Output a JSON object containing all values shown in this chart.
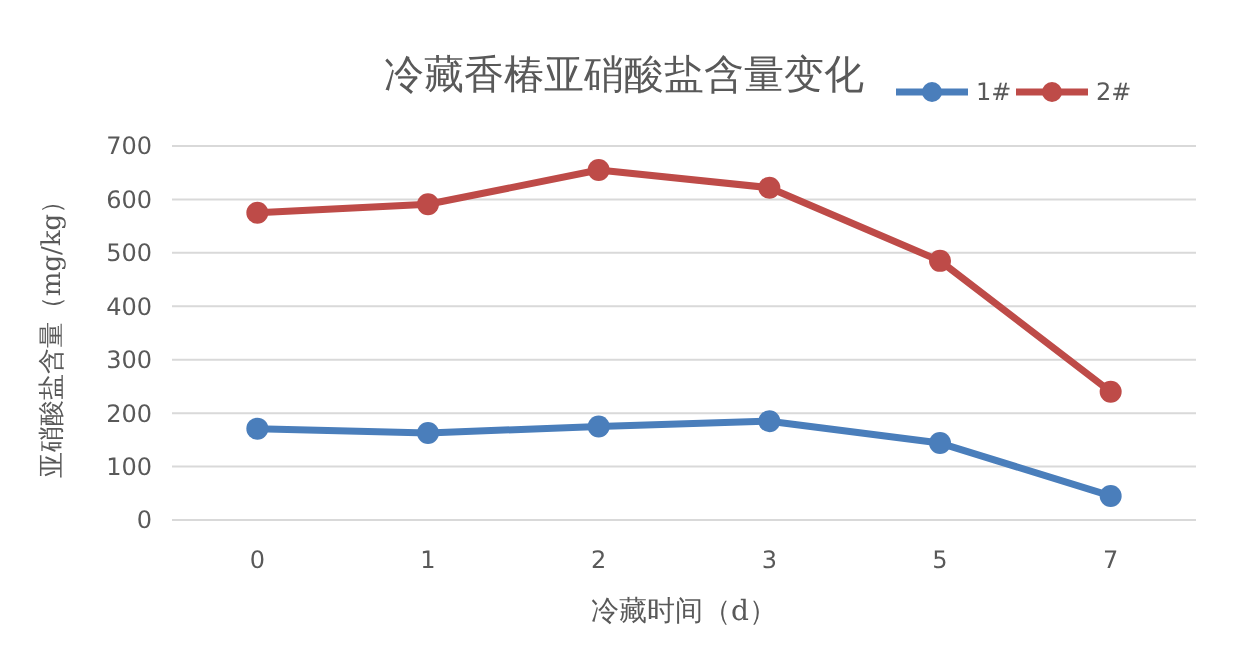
{
  "chart_data": {
    "type": "line",
    "title": "冷藏香椿亚硝酸盐含量变化",
    "xlabel": "冷藏时间（d）",
    "ylabel": "亚硝酸盐含量（mg/kg）",
    "categories": [
      "0",
      "1",
      "2",
      "3",
      "5",
      "7"
    ],
    "series": [
      {
        "name": "1#",
        "color": "#4a7ebb",
        "values": [
          171,
          163,
          175,
          185,
          144,
          45
        ]
      },
      {
        "name": "2#",
        "color": "#be4b48",
        "values": [
          575,
          591,
          655,
          622,
          485,
          240
        ]
      }
    ],
    "ylim": [
      0,
      700
    ],
    "yticks": [
      0,
      100,
      200,
      300,
      400,
      500,
      600,
      700
    ],
    "grid": "y",
    "legend": "top right",
    "marker": "circle",
    "line_style": "solid"
  }
}
